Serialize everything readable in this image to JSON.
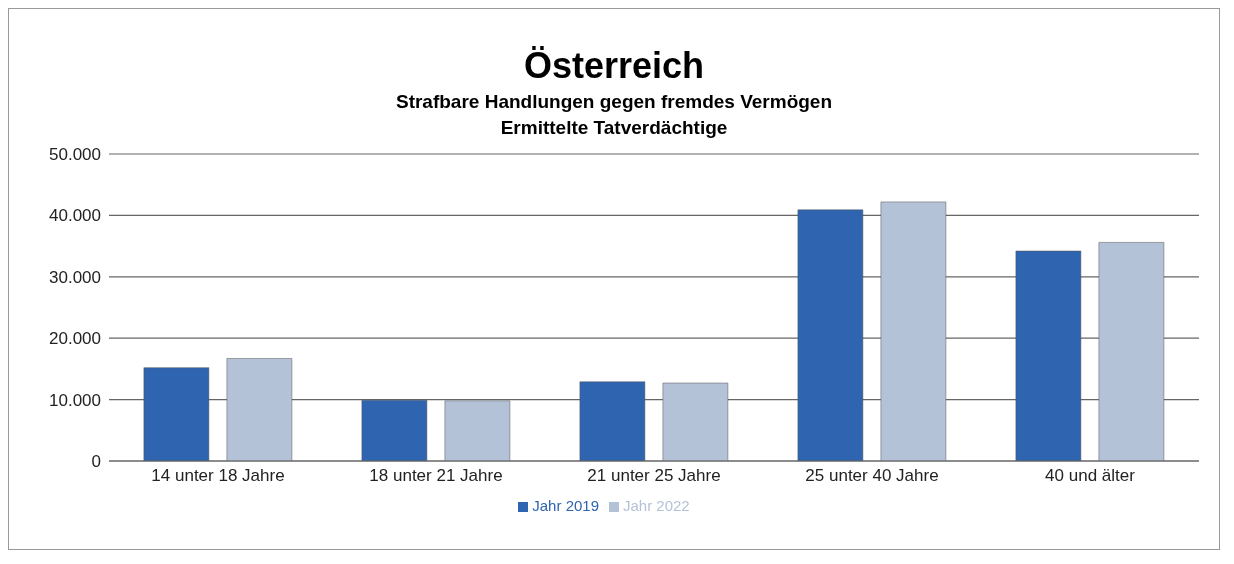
{
  "chart_data": {
    "type": "bar",
    "title": "Österreich",
    "subtitle": "Strafbare Handlungen gegen fremdes Vermögen\nErmittelte Tatverdächtige",
    "categories": [
      "14   unter 18 Jahre",
      "18   unter 21 Jahre",
      "21   unter 25 Jahre",
      "25   unter 40 Jahre",
      "40 und älter"
    ],
    "series": [
      {
        "name": "Jahr 2019",
        "color": "#2e64b0",
        "values": [
          15200,
          9900,
          12900,
          40900,
          34200
        ]
      },
      {
        "name": "Jahr 2022",
        "color": "#b4c2d8",
        "values": [
          16700,
          9800,
          12700,
          42200,
          35600
        ]
      }
    ],
    "ylim": [
      0,
      50000
    ],
    "yticks": [
      {
        "value": 0,
        "label": "0"
      },
      {
        "value": 10000,
        "label": "10.000"
      },
      {
        "value": 20000,
        "label": "20.000"
      },
      {
        "value": 30000,
        "label": "30.000"
      },
      {
        "value": 40000,
        "label": "40.000"
      },
      {
        "value": 50000,
        "label": "50.000"
      }
    ],
    "grid": "y",
    "legend": "bottom"
  }
}
